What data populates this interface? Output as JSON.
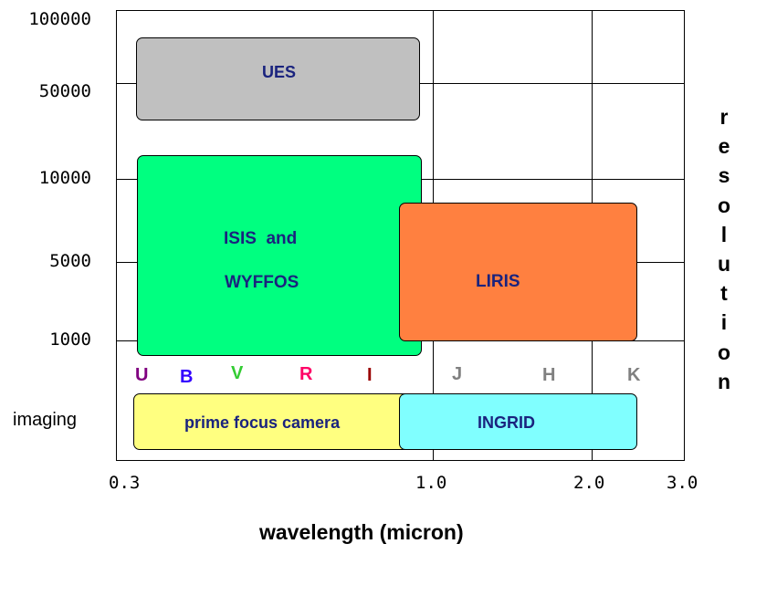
{
  "y_axis": {
    "ticks": [
      "100000",
      "50000",
      "10000",
      "5000",
      "1000"
    ],
    "imaging_label": "imaging",
    "title_letters": [
      "r",
      "e",
      "s",
      "o",
      "l",
      "u",
      "t",
      "i",
      "o",
      "n"
    ]
  },
  "x_axis": {
    "ticks": [
      "0.3",
      "1.0",
      "2.0",
      "3.0"
    ],
    "title": "wavelength (micron)"
  },
  "instruments": {
    "ues": "UES",
    "isis_line1": "ISIS  and",
    "isis_line2": "WYFFOS",
    "liris": "LIRIS",
    "prime_focus": "prime focus camera",
    "ingrid": "INGRID"
  },
  "bands": [
    {
      "name": "U",
      "color": "#800080"
    },
    {
      "name": "B",
      "color": "#3300ff"
    },
    {
      "name": "V",
      "color": "#33cc33"
    },
    {
      "name": "R",
      "color": "#ff0066"
    },
    {
      "name": "I",
      "color": "#990000"
    },
    {
      "name": "J",
      "color": "#808080"
    },
    {
      "name": "H",
      "color": "#808080"
    },
    {
      "name": "K",
      "color": "#808080"
    }
  ],
  "colors": {
    "ues": "#c0c0c0",
    "isis_wyffos": "#00ff80",
    "liris": "#ff8040",
    "prime_focus": "#ffff80",
    "ingrid": "#80ffff"
  }
}
